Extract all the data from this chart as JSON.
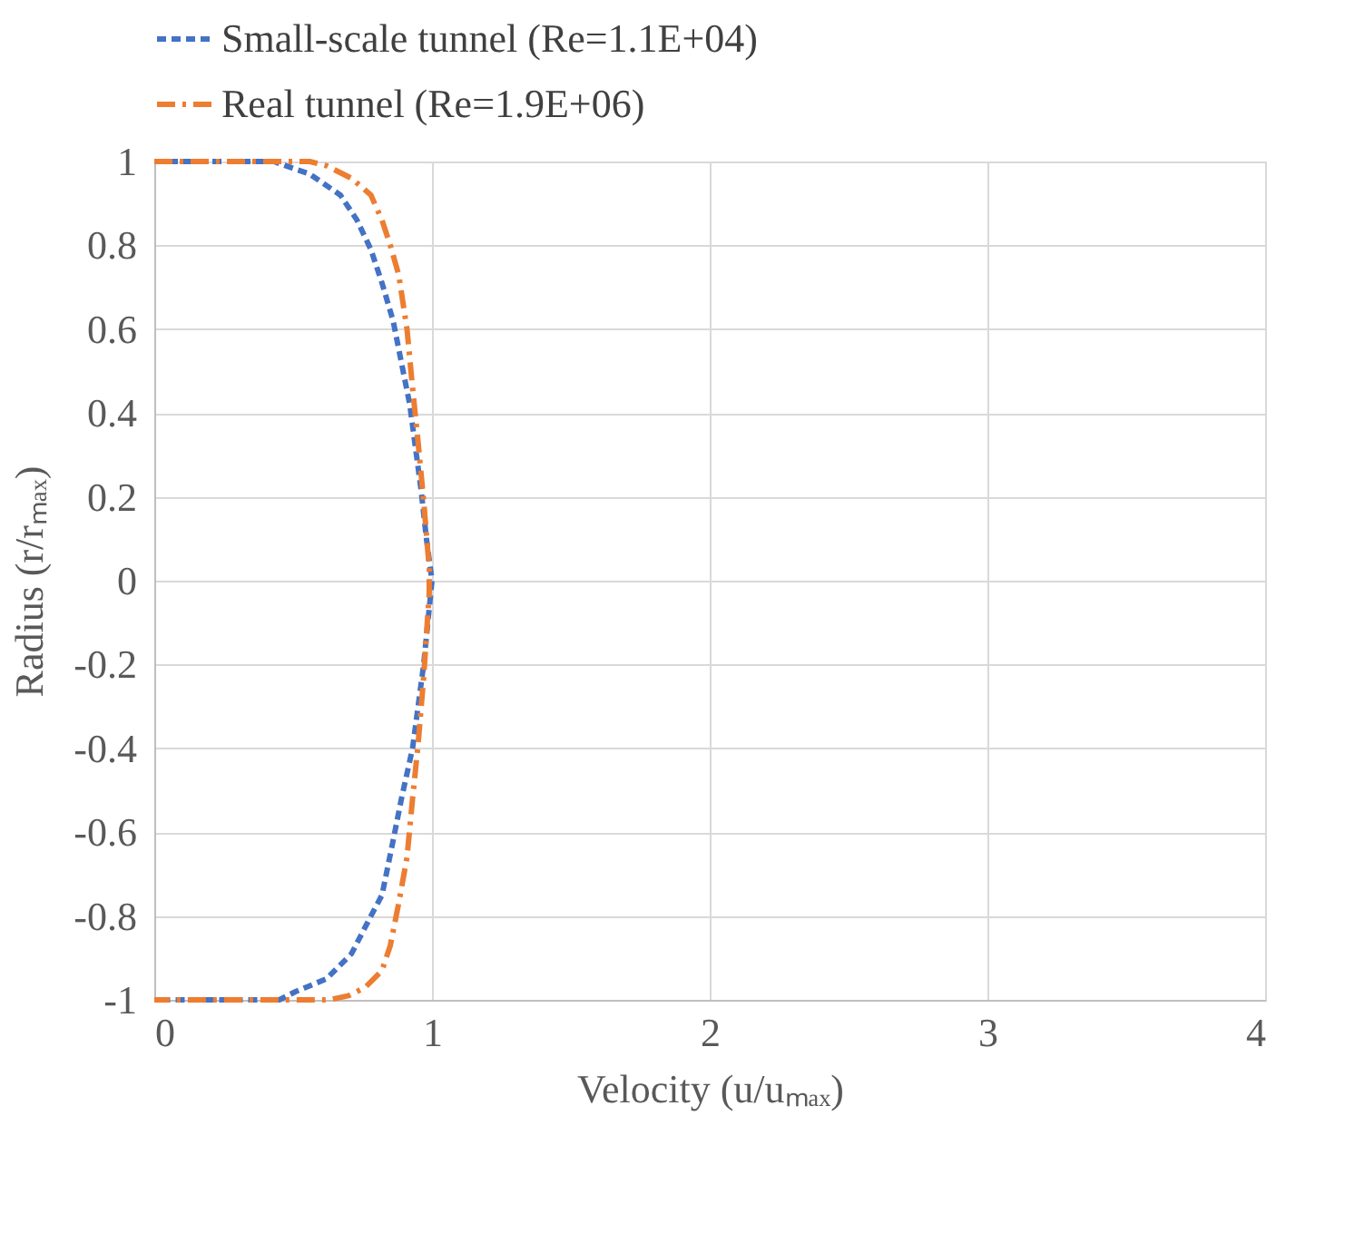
{
  "chart_data": {
    "type": "line",
    "xlabel": "Velocity (u/uₘₐₓ)",
    "ylabel": "Radius (r/rₘₐₓ)",
    "xlim": [
      0,
      4
    ],
    "xticks": [
      0,
      1,
      2,
      3,
      4
    ],
    "ylim": [
      -1,
      1
    ],
    "yticks": [
      -1,
      -0.8,
      -0.6,
      -0.4,
      -0.2,
      0,
      0.2,
      0.4,
      0.6,
      0.8,
      1
    ],
    "grid": true,
    "legend": "top",
    "marker": "none",
    "series": [
      {
        "name": "Small-scale tunnel (Re=1.1E+04)",
        "color": "#4472c4",
        "line_style": "dashed",
        "x": [
          0,
          0.43,
          0.56,
          0.67,
          0.73,
          0.78,
          0.82,
          0.86,
          0.89,
          0.92,
          0.94,
          0.96,
          0.98,
          1.0,
          0.97,
          0.93,
          0.89,
          0.86,
          0.82,
          0.78,
          0.71,
          0.62,
          0.51,
          0.45,
          0
        ],
        "values": [
          1,
          1,
          0.97,
          0.92,
          0.86,
          0.79,
          0.71,
          0.62,
          0.52,
          0.42,
          0.32,
          0.22,
          0.1,
          0,
          -0.2,
          -0.4,
          -0.52,
          -0.62,
          -0.75,
          -0.8,
          -0.89,
          -0.95,
          -0.98,
          -1,
          -1
        ]
      },
      {
        "name": "Real tunnel (Re=1.9E+06)",
        "color": "#ed7d31",
        "line_style": "dashdot",
        "x": [
          0,
          0.56,
          0.62,
          0.71,
          0.78,
          0.82,
          0.85,
          0.88,
          0.91,
          0.93,
          0.95,
          0.97,
          0.99,
          0.99,
          0.97,
          0.95,
          0.93,
          0.91,
          0.88,
          0.85,
          0.82,
          0.76,
          0.7,
          0.63,
          0
        ],
        "values": [
          1,
          1,
          0.99,
          0.96,
          0.92,
          0.86,
          0.8,
          0.73,
          0.6,
          0.46,
          0.33,
          0.19,
          0.03,
          -0.03,
          -0.23,
          -0.39,
          -0.52,
          -0.66,
          -0.77,
          -0.87,
          -0.93,
          -0.97,
          -0.99,
          -1,
          -1
        ]
      }
    ]
  }
}
